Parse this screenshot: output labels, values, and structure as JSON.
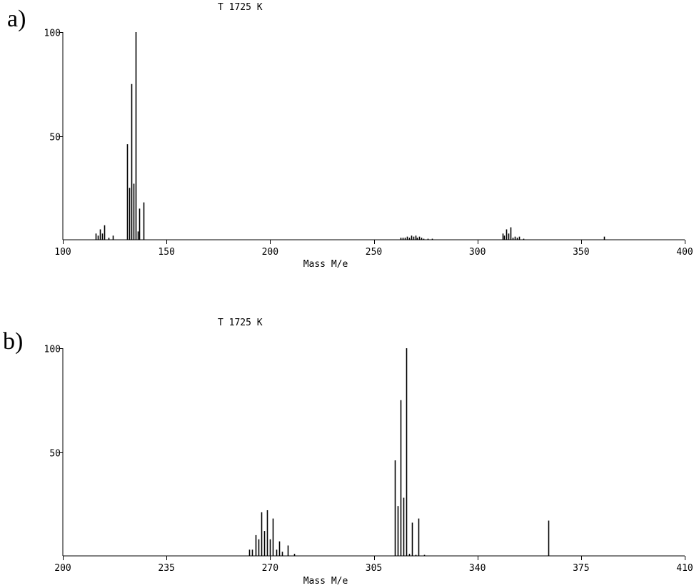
{
  "chart_data": [
    {
      "type": "bar",
      "panel_label": "a)",
      "title": "T  1725 K",
      "xlabel": "Mass M/e",
      "ylabel": "",
      "xlim": [
        100,
        400
      ],
      "ylim": [
        0,
        100
      ],
      "xticks": [
        100,
        150,
        200,
        250,
        300,
        350,
        400
      ],
      "xtick_labels": [
        "100",
        "150",
        "200",
        "250",
        "300",
        "350",
        "400"
      ],
      "yticks": [
        50,
        100
      ],
      "ytick_labels": [
        "50",
        "100"
      ],
      "grid": false,
      "legend": "none",
      "x": [
        116,
        117,
        118,
        119,
        120,
        122,
        124,
        131,
        132,
        133,
        134,
        135,
        136,
        137,
        139,
        263,
        264,
        265,
        266,
        267,
        268,
        269,
        270,
        271,
        272,
        273,
        274,
        276,
        278,
        312,
        313,
        314,
        315,
        316,
        317,
        318,
        319,
        320,
        322,
        361
      ],
      "values": [
        3,
        2,
        5,
        3,
        7,
        1,
        2,
        46,
        25,
        75,
        27,
        100,
        4,
        15,
        18,
        1,
        1,
        1,
        1.5,
        1,
        2,
        1.5,
        2,
        1,
        1.5,
        1,
        0.5,
        0.5,
        0.5,
        3,
        2,
        5,
        3,
        6,
        1,
        1.5,
        1,
        1.5,
        0.5,
        1.5
      ]
    },
    {
      "type": "bar",
      "panel_label": "b)",
      "title": "T  1725 K",
      "xlabel": "Mass M/e",
      "ylabel": "",
      "xlim": [
        200,
        410
      ],
      "ylim": [
        0,
        100
      ],
      "xticks": [
        200,
        235,
        270,
        305,
        340,
        375,
        410
      ],
      "xtick_labels": [
        "200",
        "235",
        "270",
        "305",
        "340",
        "375",
        "410"
      ],
      "yticks": [
        50,
        100
      ],
      "ytick_labels": [
        "50",
        "100"
      ],
      "grid": false,
      "legend": "none",
      "x": [
        263,
        264,
        265,
        266,
        267,
        268,
        269,
        270,
        271,
        272,
        273,
        274,
        276,
        278,
        312,
        313,
        314,
        315,
        316,
        317,
        318,
        319,
        320,
        322,
        364
      ],
      "values": [
        3,
        3,
        10,
        8,
        21,
        12,
        22,
        8,
        18,
        3,
        7,
        2,
        5,
        1,
        46,
        24,
        75,
        28,
        100,
        1,
        16,
        0.5,
        18,
        0.5,
        17
      ]
    }
  ]
}
